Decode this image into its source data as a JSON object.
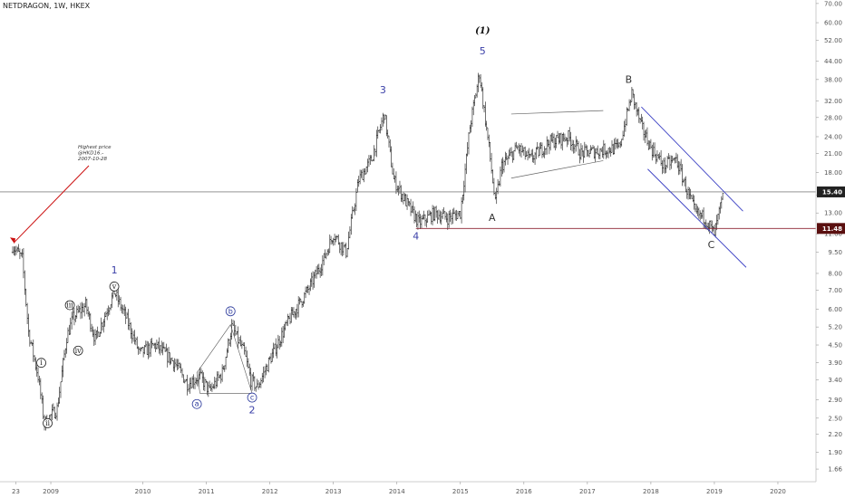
{
  "symbol_title": "NETDRAGON, 1W, HKEX",
  "chart_data": {
    "type": "candlestick",
    "title": "NETDRAGON, 1W, HKEX",
    "y_scale": "log",
    "ylim": [
      1.5,
      72
    ],
    "x_range": [
      2007.7,
      2020.5
    ],
    "y_ticks": [
      "70.00",
      "60.00",
      "52.00",
      "44.00",
      "38.00",
      "32.00",
      "28.00",
      "24.00",
      "21.00",
      "18.00",
      "15.00",
      "13.00",
      "11.00",
      "9.50",
      "8.00",
      "7.00",
      "6.00",
      "5.20",
      "4.50",
      "3.90",
      "3.40",
      "2.90",
      "2.50",
      "2.20",
      "1.90",
      "1.66"
    ],
    "x_ticks": [
      "23",
      "2009",
      "2010",
      "2011",
      "2012",
      "2013",
      "2014",
      "2015",
      "2016",
      "2017",
      "2018",
      "2019",
      "2020"
    ],
    "x_tick_years": [
      2008.0,
      2008.55,
      2010.0,
      2011.0,
      2012.0,
      2013.0,
      2014.0,
      2015.0,
      2016.0,
      2017.0,
      2018.0,
      2019.0,
      2020.0
    ],
    "price_points": [
      [
        2007.95,
        10.0
      ],
      [
        2008.1,
        9.0
      ],
      [
        2008.2,
        5.0
      ],
      [
        2008.35,
        3.5
      ],
      [
        2008.45,
        2.4
      ],
      [
        2008.65,
        2.7
      ],
      [
        2008.8,
        4.8
      ],
      [
        2008.9,
        5.6
      ],
      [
        2009.1,
        6.2
      ],
      [
        2009.25,
        4.7
      ],
      [
        2009.4,
        5.7
      ],
      [
        2009.55,
        6.9
      ],
      [
        2009.75,
        5.5
      ],
      [
        2009.95,
        4.2
      ],
      [
        2010.2,
        4.5
      ],
      [
        2010.5,
        3.9
      ],
      [
        2010.7,
        3.3
      ],
      [
        2010.9,
        3.5
      ],
      [
        2011.05,
        3.1
      ],
      [
        2011.25,
        3.6
      ],
      [
        2011.4,
        5.2
      ],
      [
        2011.6,
        4.2
      ],
      [
        2011.7,
        3.4
      ],
      [
        2011.8,
        3.2
      ],
      [
        2012.0,
        4.0
      ],
      [
        2012.3,
        5.5
      ],
      [
        2012.6,
        7.0
      ],
      [
        2012.85,
        9.0
      ],
      [
        2013.0,
        11.0
      ],
      [
        2013.2,
        9.5
      ],
      [
        2013.4,
        17.0
      ],
      [
        2013.6,
        20.0
      ],
      [
        2013.8,
        29.0
      ],
      [
        2013.95,
        17.0
      ],
      [
        2014.2,
        13.5
      ],
      [
        2014.35,
        12.0
      ],
      [
        2014.6,
        13.0
      ],
      [
        2014.8,
        12.5
      ],
      [
        2015.0,
        13.0
      ],
      [
        2015.15,
        26.0
      ],
      [
        2015.3,
        40.0
      ],
      [
        2015.45,
        22.0
      ],
      [
        2015.55,
        14.0
      ],
      [
        2015.65,
        19.0
      ],
      [
        2015.9,
        22.0
      ],
      [
        2016.1,
        20.0
      ],
      [
        2016.4,
        23.0
      ],
      [
        2016.7,
        24.0
      ],
      [
        2016.9,
        21.0
      ],
      [
        2017.2,
        21.5
      ],
      [
        2017.5,
        22.0
      ],
      [
        2017.7,
        34.0
      ],
      [
        2017.85,
        26.0
      ],
      [
        2018.0,
        22.0
      ],
      [
        2018.2,
        19.0
      ],
      [
        2018.4,
        20.0
      ],
      [
        2018.55,
        16.0
      ],
      [
        2018.7,
        13.0
      ],
      [
        2018.85,
        12.5
      ],
      [
        2019.0,
        11.0
      ],
      [
        2019.15,
        15.4
      ]
    ],
    "last_price": 15.4,
    "support_level": 11.48,
    "last_price_label": "15.40",
    "support_label": "11.48",
    "waves": [
      {
        "label": "(1)",
        "t": 2015.35,
        "p": 55.0,
        "style": "title"
      },
      {
        "label": "5",
        "t": 2015.35,
        "p": 46.5,
        "style": "blue"
      },
      {
        "label": "3",
        "t": 2013.78,
        "p": 34.0,
        "style": "blue"
      },
      {
        "label": "4",
        "t": 2014.3,
        "p": 10.5,
        "style": "blue"
      },
      {
        "label": "1",
        "t": 2009.55,
        "p": 8.0,
        "style": "blue"
      },
      {
        "label": "2",
        "t": 2011.72,
        "p": 2.6,
        "style": "blue"
      },
      {
        "label": "A",
        "t": 2015.5,
        "p": 12.2,
        "style": "black"
      },
      {
        "label": "B",
        "t": 2017.65,
        "p": 37.0,
        "style": "black"
      },
      {
        "label": "C",
        "t": 2018.95,
        "p": 9.8,
        "style": "black"
      }
    ],
    "roman_waves": [
      {
        "label": "i",
        "t": 2008.4,
        "p": 3.9
      },
      {
        "label": "ii",
        "t": 2008.5,
        "p": 2.4
      },
      {
        "label": "iii",
        "t": 2008.85,
        "p": 6.2
      },
      {
        "label": "iv",
        "t": 2008.98,
        "p": 4.3
      },
      {
        "label": "v",
        "t": 2009.55,
        "p": 7.2
      }
    ],
    "abc_waves": [
      {
        "label": "a",
        "t": 2010.85,
        "p": 2.8
      },
      {
        "label": "b",
        "t": 2011.38,
        "p": 5.9
      },
      {
        "label": "c",
        "t": 2011.72,
        "p": 2.95
      }
    ],
    "annotation": {
      "lines": [
        "Highest price",
        "@HKD16.-",
        "2007-10-28"
      ]
    }
  }
}
